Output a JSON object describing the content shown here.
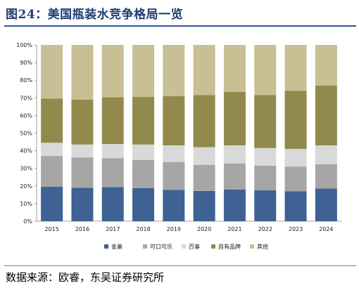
{
  "title": "图24：美国瓶装水竞争格局一览",
  "source": "数据来源：欧睿，东吴证券研究所",
  "chart_data": {
    "type": "bar",
    "stacked": true,
    "categories": [
      "2015",
      "2016",
      "2017",
      "2018",
      "2019",
      "2020",
      "2021",
      "2022",
      "2023",
      "2024"
    ],
    "ylim": [
      0,
      100
    ],
    "yticks": [
      "0%",
      "10%",
      "20%",
      "30%",
      "40%",
      "50%",
      "60%",
      "70%",
      "80%",
      "90%",
      "100%"
    ],
    "legend_position": "bottom",
    "series": [
      {
        "name": "雀巢",
        "color": "#3d6293",
        "values": [
          19.5,
          19.0,
          19.3,
          18.8,
          17.8,
          17.2,
          18.0,
          17.5,
          17.0,
          18.5
        ]
      },
      {
        "name": "可口可乐",
        "color": "#a6a6a6",
        "values": [
          17.5,
          17.2,
          16.5,
          16.0,
          15.8,
          14.8,
          14.8,
          14.0,
          14.0,
          13.8
        ]
      },
      {
        "name": "百事",
        "color": "#d9d9d9",
        "values": [
          7.5,
          7.3,
          8.0,
          8.7,
          9.4,
          10.0,
          10.2,
          10.0,
          10.0,
          10.7
        ]
      },
      {
        "name": "自有品牌",
        "color": "#928a4c",
        "values": [
          25.0,
          25.5,
          26.5,
          27.0,
          28.0,
          29.5,
          30.3,
          30.0,
          33.0,
          34.0
        ]
      },
      {
        "name": "其他",
        "color": "#c9bf94",
        "values": [
          30.5,
          31.0,
          29.7,
          29.5,
          29.0,
          28.5,
          26.7,
          28.5,
          26.0,
          23.0
        ]
      }
    ]
  }
}
